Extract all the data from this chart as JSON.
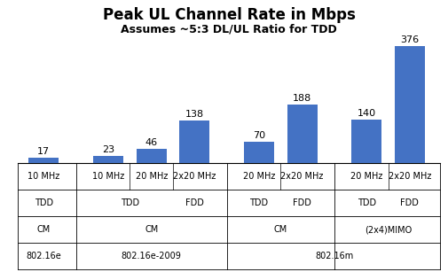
{
  "title": "Peak UL Channel Rate in Mbps",
  "subtitle": "Assumes ~5:3 DL/UL Ratio for TDD",
  "bar_values": [
    17,
    23,
    46,
    138,
    70,
    188,
    140,
    376
  ],
  "bar_color": "#4472C4",
  "bar_positions": [
    0,
    1.5,
    2.5,
    3.5,
    5.0,
    6.0,
    7.5,
    8.5
  ],
  "bar_width": 0.7,
  "ylim": [
    0,
    420
  ],
  "xlim": [
    -0.6,
    9.2
  ],
  "row1_labels": [
    "10 MHz",
    "10 MHz",
    "20 MHz",
    "2x20 MHz",
    "20 MHz",
    "2x20 MHz",
    "20 MHz",
    "2x20 MHz"
  ],
  "group_dividers": [
    0.75,
    4.25,
    6.75
  ],
  "inner_dividers": [
    2.0,
    3.0,
    5.5,
    8.0
  ],
  "title_fontsize": 12,
  "subtitle_fontsize": 9,
  "label_fontsize": 7,
  "value_fontsize": 8,
  "background_color": "#FFFFFF"
}
